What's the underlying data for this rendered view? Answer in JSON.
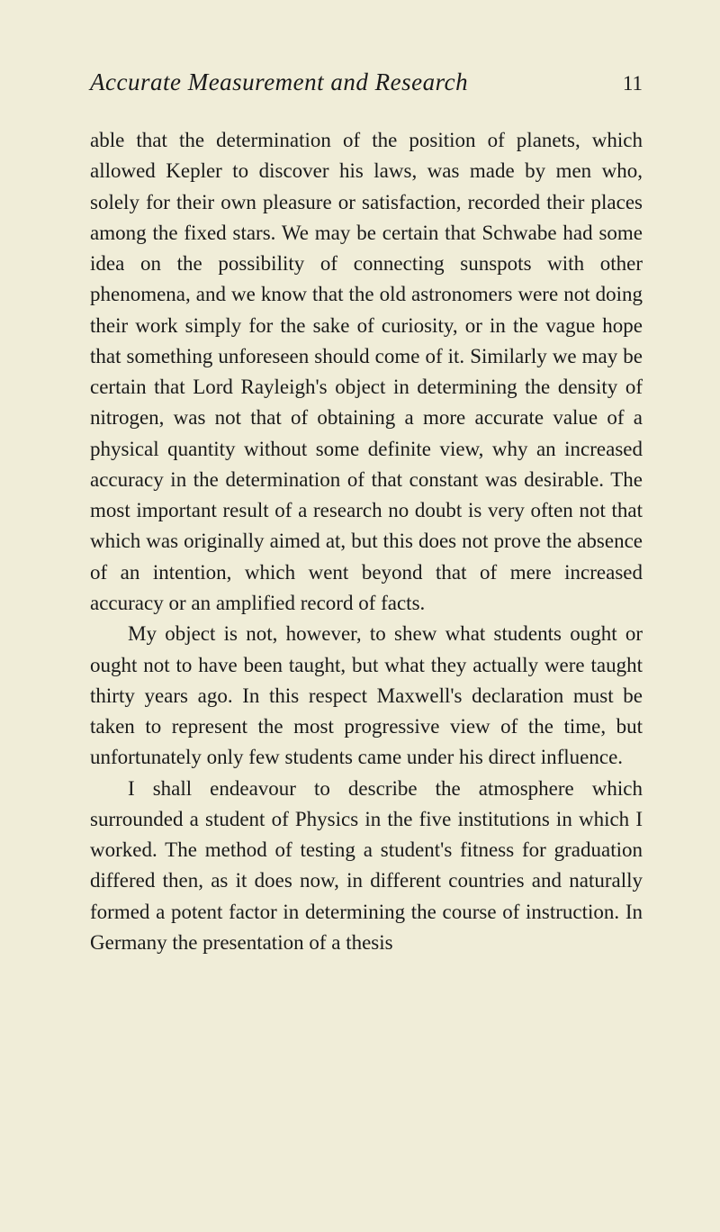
{
  "header": {
    "title": "Accurate Measurement and Research",
    "page_number": "11"
  },
  "paragraphs": {
    "p1": "able that the determination of the position of planets, which allowed Kepler to discover his laws, was made by men who, solely for their own pleasure or satisfaction, recorded their places among the fixed stars. We may be certain that Schwabe had some idea on the possi­bility of connecting sunspots with other phenomena, and we know that the old astronomers were not doing their work simply for the sake of curiosity, or in the vague hope that something unforeseen should come of it. Similarly we may be certain that Lord Rayleigh's object in determining the density of nitrogen, was not that of obtaining a more accurate value of a physical quantity without some definite view, why an increased accuracy in the determination of that constant was desirable. The most important result of a research no doubt is very often not that which was originally aimed at, but this does not prove the absence of an intention, which went beyond that of mere increased accuracy or an amplified record of facts.",
    "p2": "My object is not, however, to shew what students ought or ought not to have been taught, but what they actually were taught thirty years ago. In this respect Maxwell's declaration must be taken to represent the most progressive view of the time, but unfortunately only few students came under his direct influence.",
    "p3": "I shall endeavour to describe the atmosphere which surrounded a student of Physics in the five institutions in which I worked. The method of testing a student's fitness for graduation differed then, as it does now, in different countries and naturally formed a potent factor in determining the course of instruction. In Germany the presentation of a thesis"
  },
  "styles": {
    "background_color": "#f0edd8",
    "text_color": "#1a1a1a",
    "title_fontsize": 27,
    "body_fontsize": 23,
    "line_height": 1.49
  }
}
